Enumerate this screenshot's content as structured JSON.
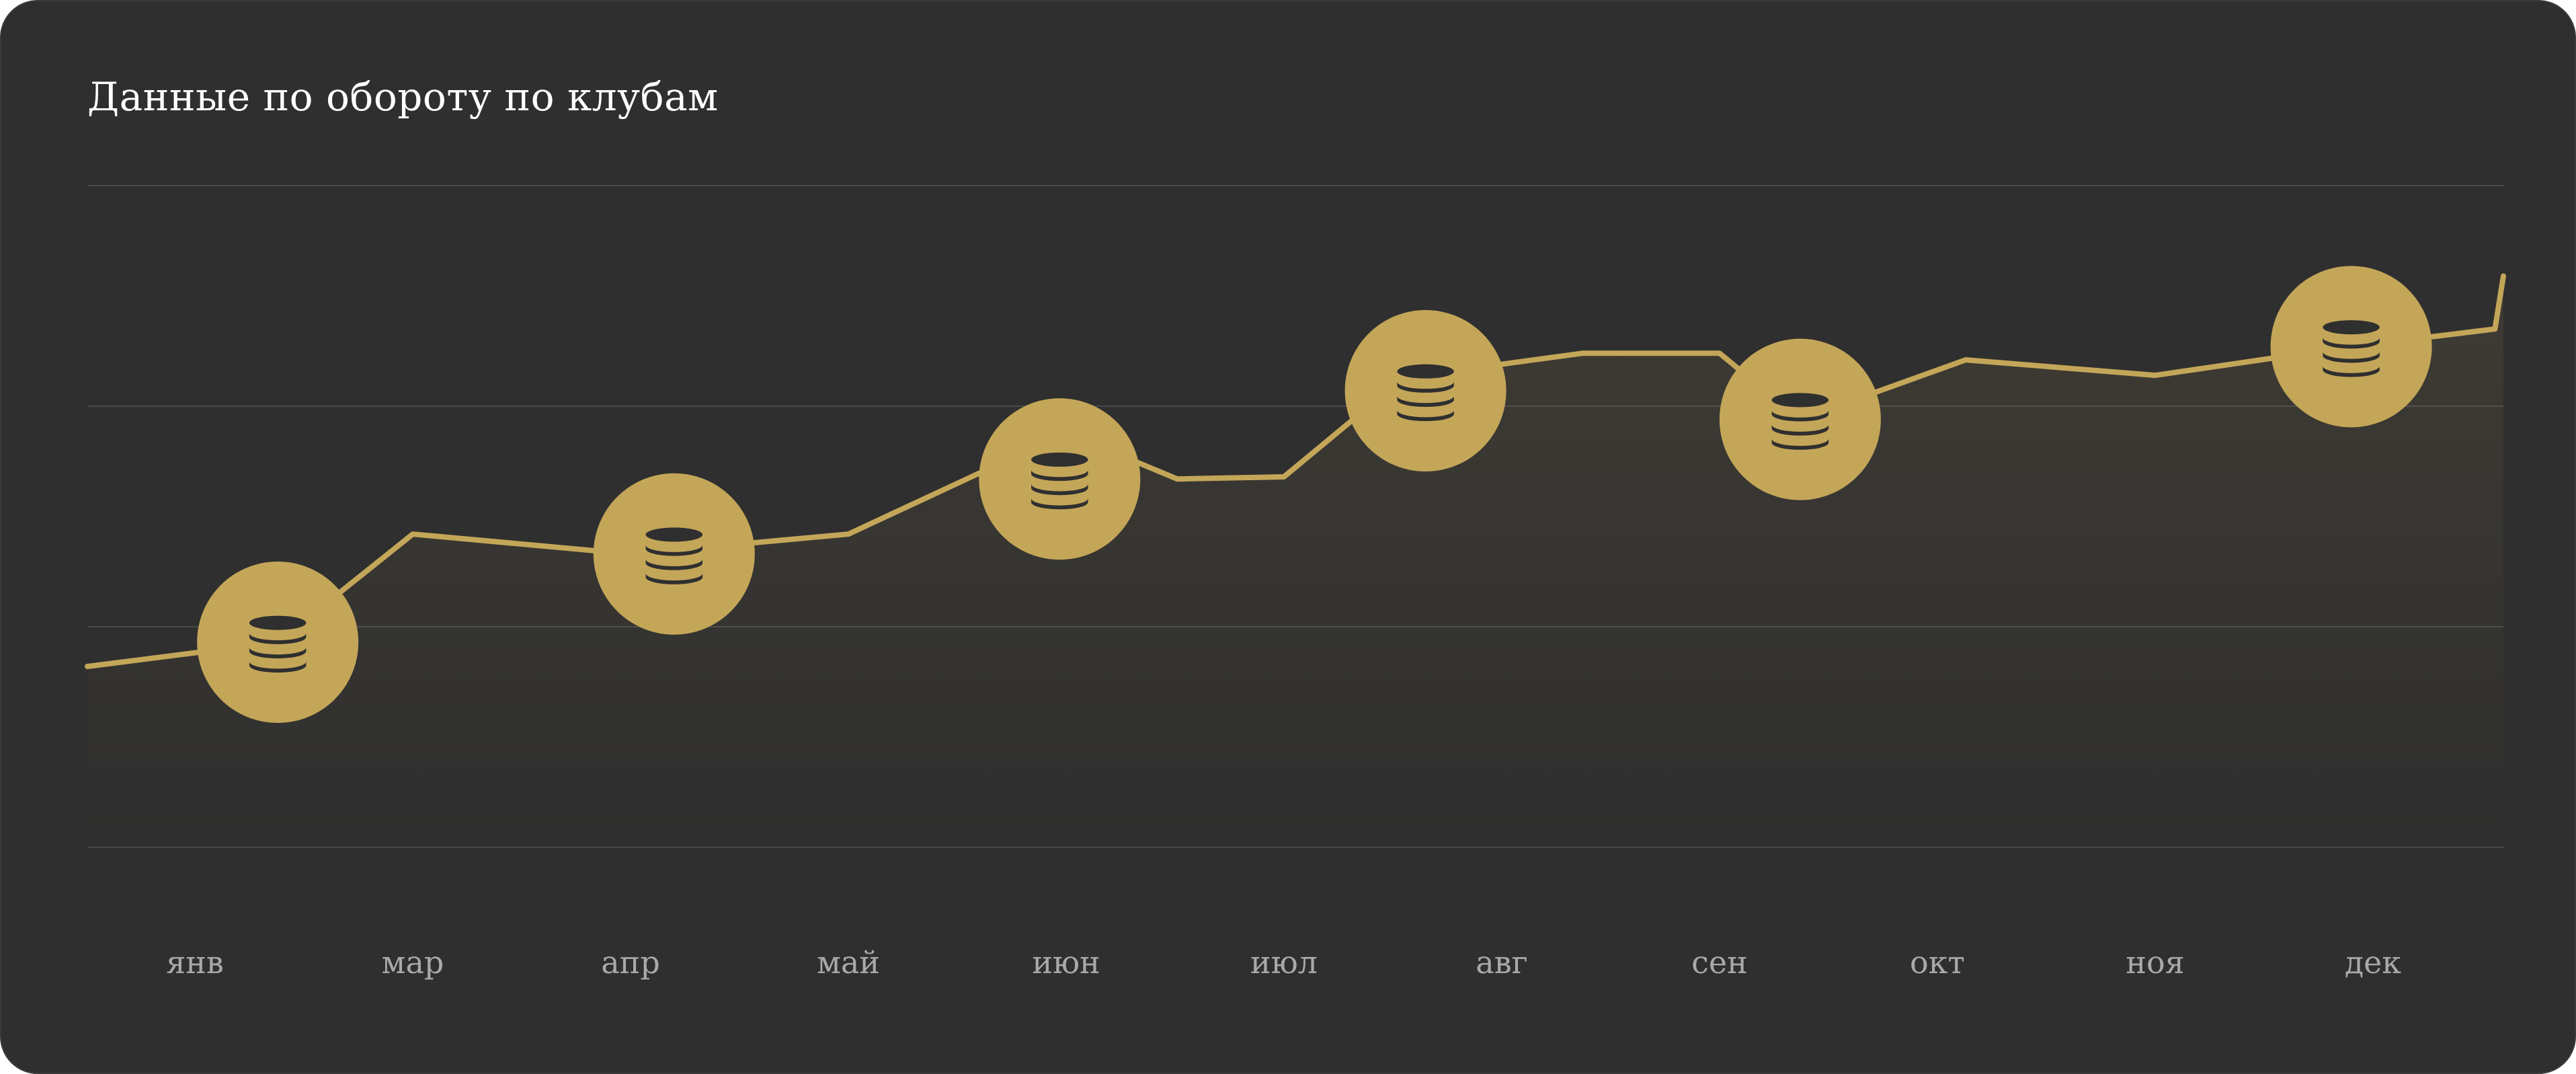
{
  "title": "Данные по обороту по клубам",
  "colors": {
    "background": "#2f2f2f",
    "line": "#c4a659",
    "marker": "#c4a659",
    "marker_icon": "#2f2f2f",
    "grid": "#4a4a4a",
    "tick_text": "#a9a9a9",
    "title_text": "#ffffff"
  },
  "marker_icon": "coin-stack-icon",
  "chart_data": {
    "type": "area",
    "title": "Данные по обороту по клубам",
    "xlabel": "",
    "ylabel": "",
    "categories": [
      "янв",
      "мар",
      "апр",
      "май",
      "июн",
      "июл",
      "авг",
      "сен",
      "окт",
      "ноя",
      "дек"
    ],
    "ylim": [
      0,
      3
    ],
    "grid": true,
    "legend": "none",
    "y_tick_labels_shown": false,
    "series": [
      {
        "x": [
          -0.5,
          0.38,
          1.0,
          2.0,
          3.0,
          4.0,
          4.51,
          5.0,
          5.55,
          6.37,
          7.0,
          7.37,
          8.13,
          9.0,
          9.9,
          10.56,
          11.0
        ],
        "values": [
          0.82,
          0.93,
          1.42,
          1.33,
          1.42,
          1.88,
          1.67,
          1.68,
          2.13,
          2.24,
          2.24,
          1.94,
          2.21,
          2.14,
          2.27,
          2.35,
          2.59
        ]
      }
    ],
    "markers": [
      {
        "x": 0.38,
        "value": 0.93,
        "icon": "coin-stack-icon"
      },
      {
        "x": 2.2,
        "value": 1.33,
        "icon": "coin-stack-icon"
      },
      {
        "x": 3.97,
        "value": 1.67,
        "icon": "coin-stack-icon"
      },
      {
        "x": 5.65,
        "value": 2.07,
        "icon": "coin-stack-icon"
      },
      {
        "x": 7.37,
        "value": 1.94,
        "icon": "coin-stack-icon"
      },
      {
        "x": 9.9,
        "value": 2.27,
        "icon": "coin-stack-icon"
      }
    ]
  }
}
